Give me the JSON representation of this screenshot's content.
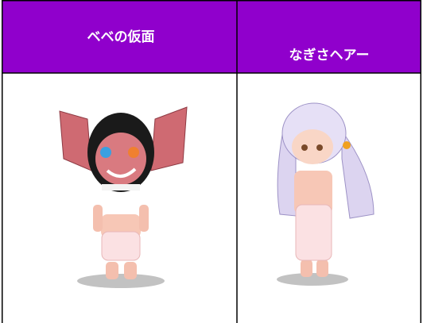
{
  "table": {
    "headers": [
      "ベベの仮面",
      "なぎさヘアー"
    ]
  }
}
